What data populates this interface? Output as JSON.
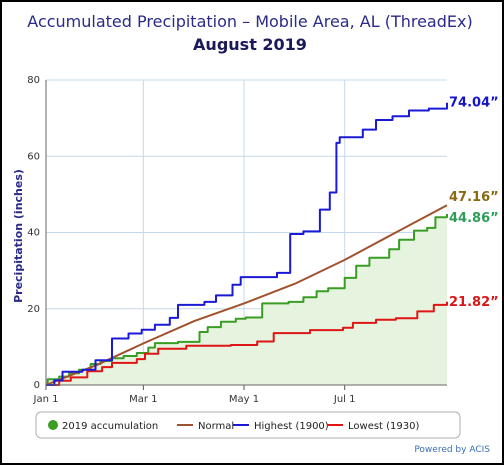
{
  "chart_data": {
    "type": "line",
    "title": "Accumulated Precipitation – Mobile Area, AL (ThreadEx)",
    "subtitle": "August 2019",
    "ylabel": "Precipitation (inches)",
    "ylim": [
      0,
      80
    ],
    "yticks": [
      "0",
      "20",
      "40",
      "60",
      "80"
    ],
    "xlim": [
      0,
      243
    ],
    "xticks": [
      {
        "day": 0,
        "label": "Jan 1"
      },
      {
        "day": 59,
        "label": "Mar 1"
      },
      {
        "day": 120,
        "label": "May 1"
      },
      {
        "day": 181,
        "label": "Jul 1"
      }
    ],
    "grid": true,
    "legend_position": "bottom",
    "series": [
      {
        "name": "2019 accumulation",
        "color": "#3a9d23",
        "fill": "#e6f4df",
        "style": "area-step",
        "end_label": "44.86”",
        "label_color": "#2e9d57",
        "points": [
          [
            0,
            0
          ],
          [
            1,
            1.5
          ],
          [
            8,
            2.2
          ],
          [
            14,
            3.1
          ],
          [
            20,
            4.0
          ],
          [
            27,
            5.5
          ],
          [
            33,
            6.3
          ],
          [
            40,
            7.0
          ],
          [
            47,
            7.6
          ],
          [
            55,
            8.4
          ],
          [
            62,
            9.8
          ],
          [
            66,
            11.0
          ],
          [
            80,
            11.3
          ],
          [
            93,
            13.9
          ],
          [
            98,
            15.2
          ],
          [
            106,
            16.6
          ],
          [
            115,
            17.4
          ],
          [
            121,
            17.7
          ],
          [
            131,
            21.4
          ],
          [
            147,
            21.8
          ],
          [
            156,
            23.0
          ],
          [
            164,
            24.6
          ],
          [
            171,
            25.4
          ],
          [
            181,
            28.1
          ],
          [
            188,
            31.3
          ],
          [
            196,
            33.4
          ],
          [
            208,
            35.6
          ],
          [
            214,
            38.1
          ],
          [
            223,
            40.5
          ],
          [
            231,
            41.2
          ],
          [
            236,
            44.0
          ],
          [
            243,
            44.86
          ]
        ]
      },
      {
        "name": "Normal",
        "color": "#a0522d",
        "style": "line",
        "end_label": "47.16”",
        "label_color": "#8a6a10",
        "points": [
          [
            0,
            0
          ],
          [
            31,
            5.3
          ],
          [
            59,
            10.9
          ],
          [
            90,
            16.8
          ],
          [
            120,
            21.4
          ],
          [
            151,
            26.6
          ],
          [
            181,
            32.8
          ],
          [
            212,
            40.0
          ],
          [
            243,
            47.16
          ]
        ]
      },
      {
        "name": "Highest (1900)",
        "color": "#1a1ad6",
        "style": "step",
        "end_label": "74.04”",
        "label_color": "#1515c8",
        "points": [
          [
            0,
            0
          ],
          [
            5,
            1.2
          ],
          [
            10,
            3.5
          ],
          [
            22,
            4.0
          ],
          [
            30,
            6.5
          ],
          [
            40,
            12.2
          ],
          [
            50,
            13.5
          ],
          [
            58,
            14.5
          ],
          [
            66,
            15.8
          ],
          [
            75,
            17.6
          ],
          [
            80,
            21.0
          ],
          [
            96,
            21.8
          ],
          [
            103,
            23.5
          ],
          [
            113,
            26.3
          ],
          [
            118,
            28.3
          ],
          [
            140,
            29.4
          ],
          [
            148,
            39.6
          ],
          [
            156,
            40.3
          ],
          [
            166,
            46.0
          ],
          [
            172,
            50.5
          ],
          [
            176,
            63.5
          ],
          [
            178,
            65.0
          ],
          [
            192,
            67.0
          ],
          [
            200,
            69.5
          ],
          [
            210,
            70.5
          ],
          [
            220,
            72.0
          ],
          [
            232,
            72.5
          ],
          [
            243,
            74.04
          ]
        ]
      },
      {
        "name": "Lowest (1930)",
        "color": "#e01515",
        "style": "step",
        "end_label": "21.82”",
        "label_color": "#d81818",
        "points": [
          [
            0,
            0
          ],
          [
            8,
            1.1
          ],
          [
            15,
            2.0
          ],
          [
            25,
            3.6
          ],
          [
            34,
            4.7
          ],
          [
            40,
            5.8
          ],
          [
            55,
            6.8
          ],
          [
            60,
            8.2
          ],
          [
            68,
            9.5
          ],
          [
            85,
            10.3
          ],
          [
            112,
            10.5
          ],
          [
            128,
            11.4
          ],
          [
            138,
            13.6
          ],
          [
            160,
            14.4
          ],
          [
            180,
            15.0
          ],
          [
            186,
            16.3
          ],
          [
            200,
            17.1
          ],
          [
            212,
            17.5
          ],
          [
            225,
            19.3
          ],
          [
            235,
            21.0
          ],
          [
            243,
            21.82
          ]
        ]
      }
    ]
  },
  "legend": {
    "items": [
      "2019 accumulation",
      "Normal",
      "Highest (1900)",
      "Lowest (1930)"
    ]
  },
  "credit": "Powered by ACIS"
}
